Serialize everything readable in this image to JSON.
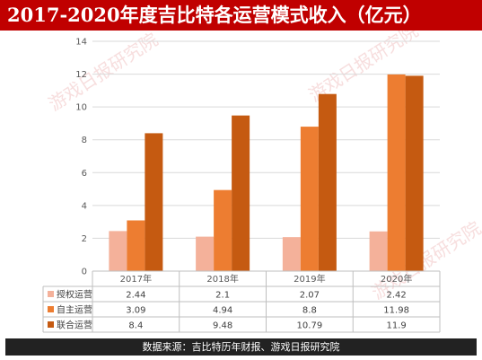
{
  "header": {
    "title": "2017-2020年度吉比特各运营模式收入（亿元）"
  },
  "watermark": {
    "text": "游戏日报研究院"
  },
  "footer": {
    "source": "数据来源：吉比特历年财报、游戏日报研究院"
  },
  "colors": {
    "title_bg": "#c00000",
    "footer_bg": "#222222",
    "series": [
      "#f4b19a",
      "#ed7d31",
      "#c55a11"
    ]
  },
  "chart_data": {
    "type": "bar",
    "title": "2017-2020年度吉比特各运营模式收入（亿元）",
    "categories": [
      "2017年",
      "2018年",
      "2019年",
      "2020年"
    ],
    "series": [
      {
        "name": "授权运营",
        "values": [
          2.44,
          2.1,
          2.07,
          2.42
        ],
        "labels": [
          "2.44",
          "2.1",
          "2.07",
          "2.42"
        ]
      },
      {
        "name": "自主运营",
        "values": [
          3.09,
          4.94,
          8.8,
          11.98
        ],
        "labels": [
          "3.09",
          "4.94",
          "8.8",
          "11.98"
        ]
      },
      {
        "name": "联合运营",
        "values": [
          8.4,
          9.48,
          10.79,
          11.9
        ],
        "labels": [
          "8.4",
          "9.48",
          "10.79",
          "11.9"
        ]
      }
    ],
    "ylim": [
      0,
      14
    ],
    "yticks": [
      "0",
      "2",
      "4",
      "6",
      "8",
      "10",
      "12",
      "14"
    ],
    "grid": true,
    "legend": "data-table-left"
  }
}
